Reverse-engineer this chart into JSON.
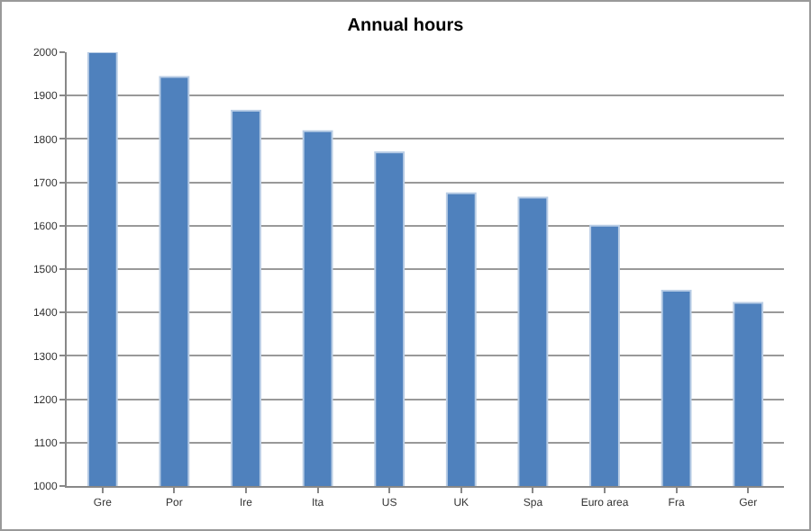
{
  "chart_data": {
    "type": "bar",
    "title": "Annual hours",
    "categories": [
      "Gre",
      "Por",
      "Ire",
      "Ita",
      "US",
      "UK",
      "Spa",
      "Euro area",
      "Fra",
      "Ger"
    ],
    "values": [
      2000,
      1943,
      1865,
      1818,
      1769,
      1675,
      1665,
      1600,
      1450,
      1422
    ],
    "color": "#4f81bd",
    "ylim": [
      1000,
      2000
    ],
    "yticks": [
      1000,
      1100,
      1200,
      1300,
      1400,
      1500,
      1600,
      1700,
      1800,
      1900,
      2000
    ],
    "grid": "y",
    "legend": false
  }
}
